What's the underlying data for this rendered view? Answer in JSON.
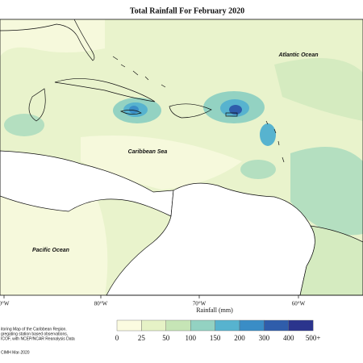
{
  "title": "Total Rainfall For February 2020",
  "places": [
    "Atlantic Ocean",
    "Caribbean Sea",
    "Pacific Ocean"
  ],
  "longitude_labels": [
    "0°W",
    "80°W",
    "70°W",
    "60°W"
  ],
  "legend": {
    "title": "Rainfall (mm)",
    "labels": [
      0,
      25,
      50,
      100,
      150,
      200,
      300,
      400,
      "500+"
    ],
    "colors": [
      "#fbfbe0",
      "#e6f2c6",
      "#c6e5b6",
      "#93d2c2",
      "#57b3cf",
      "#3a8dc6",
      "#2f5dab",
      "#2b348d"
    ]
  },
  "notes": [
    "itoring Map of the Caribbean Region.",
    "gregating station based observations,",
    "ICOF, with NCEP/NCAR Reanalysis Data",
    "CIMH Mar-2020"
  ]
}
